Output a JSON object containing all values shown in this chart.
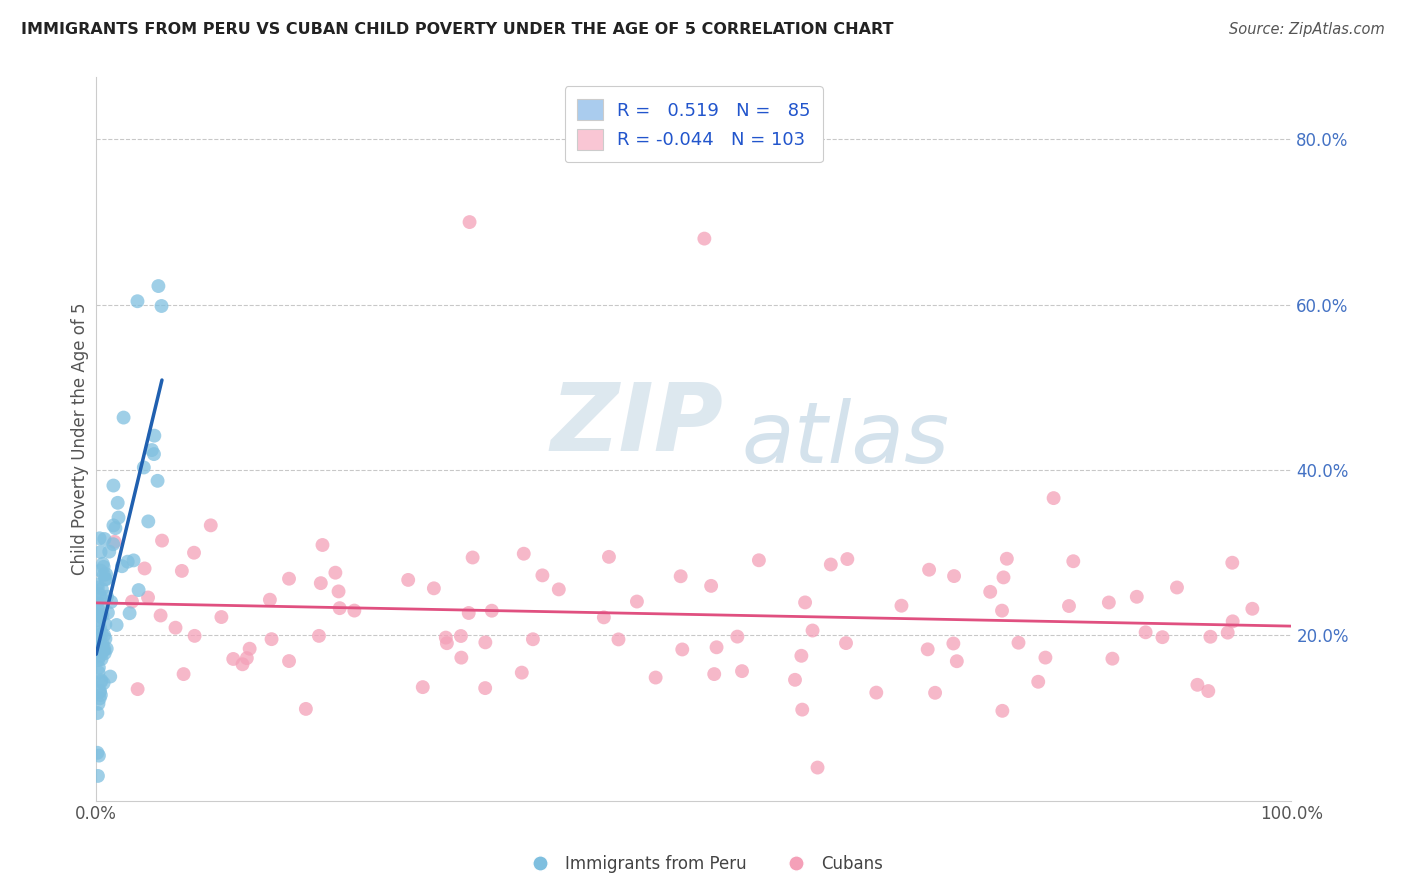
{
  "title": "IMMIGRANTS FROM PERU VS CUBAN CHILD POVERTY UNDER THE AGE OF 5 CORRELATION CHART",
  "source": "Source: ZipAtlas.com",
  "ylabel": "Child Poverty Under the Age of 5",
  "r_peru": 0.519,
  "n_peru": 85,
  "r_cuban": -0.044,
  "n_cuban": 103,
  "color_peru": "#7fbfdf",
  "color_cuban": "#f4a0b8",
  "color_peru_line": "#2060b0",
  "color_cuban_line": "#e05080",
  "legend_box_peru": "#aaccee",
  "legend_box_cuban": "#f9c6d4",
  "watermark_zip": "ZIP",
  "watermark_atlas": "atlas",
  "background": "#ffffff"
}
